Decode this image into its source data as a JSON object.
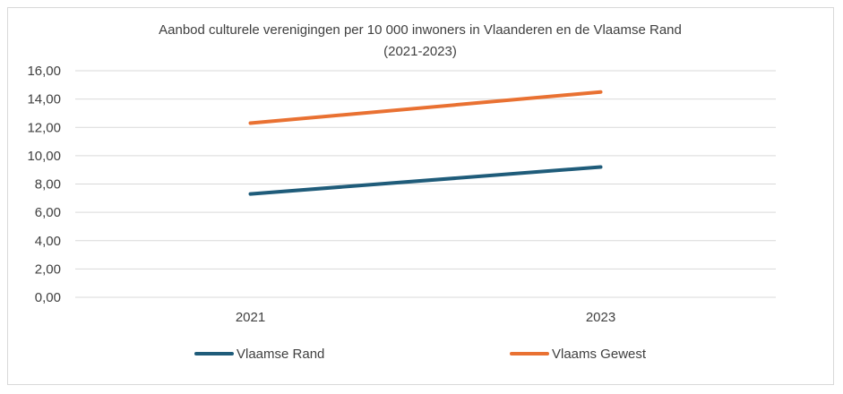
{
  "chart_data": {
    "type": "line",
    "title_line1": "Aanbod culturele verenigingen per 10 000 inwoners in Vlaanderen en de Vlaamse Rand",
    "title_line2": "(2021-2023)",
    "x": [
      "2021",
      "2023"
    ],
    "y_ticks": [
      "0,00",
      "2,00",
      "4,00",
      "6,00",
      "8,00",
      "10,00",
      "12,00",
      "14,00",
      "16,00"
    ],
    "ylim": [
      0,
      16
    ],
    "grid": true,
    "legend_position": "bottom",
    "series": [
      {
        "name": "Vlaamse Rand",
        "values": [
          7.3,
          9.2
        ],
        "color": "#1f5c7a"
      },
      {
        "name": "Vlaams Gewest",
        "values": [
          12.3,
          14.5
        ],
        "color": "#e97132"
      }
    ]
  }
}
